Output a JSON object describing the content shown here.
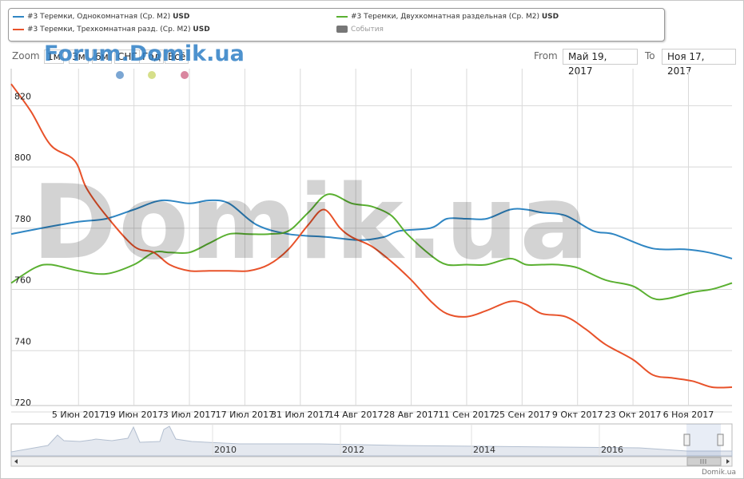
{
  "legend": [
    {
      "label": "#3 Теремки, Однокомнатная (Ср. М2)",
      "unit": "USD",
      "color": "#2f86c3"
    },
    {
      "label": "#3 Теремки, Двухкомнатная раздельная (Ср. М2)",
      "unit": "USD",
      "color": "#5ab031"
    },
    {
      "label": "#3 Теремки, Трехкомнатная разд. (Ср. М2)",
      "unit": "USD",
      "color": "#e8522a"
    },
    {
      "label": "События",
      "unit": "",
      "color": "#777777"
    }
  ],
  "zoom": {
    "label": "Zoom",
    "buttons": [
      "1м",
      "3м",
      "6м",
      "СНГ",
      "Год",
      "Всё"
    ]
  },
  "range": {
    "from_label": "From",
    "from_value": "Май 19, 2017",
    "to_label": "To",
    "to_value": "Ноя 17, 2017"
  },
  "watermarks": {
    "top": "Forum.Domik.ua",
    "big": "Domik.ua"
  },
  "credit": "Domik.ua",
  "event_dot_colors": [
    "#7ba6d3",
    "#d6df8a",
    "#d9869f"
  ],
  "chart_data": {
    "type": "line",
    "ylim": [
      720,
      830
    ],
    "yticks": [
      720,
      740,
      760,
      780,
      800,
      820
    ],
    "xlim": [
      0,
      182
    ],
    "xticks": [
      {
        "label": "5 Июн 2017",
        "x": 17
      },
      {
        "label": "19 Июн 2017",
        "x": 31
      },
      {
        "label": "3 Июл 2017",
        "x": 45
      },
      {
        "label": "17 Июл 2017",
        "x": 59
      },
      {
        "label": "31 Июл 2017",
        "x": 73
      },
      {
        "label": "14 Авг 2017",
        "x": 87
      },
      {
        "label": "28 Авг 2017",
        "x": 101
      },
      {
        "label": "11 Сен 2017",
        "x": 115
      },
      {
        "label": "25 Сен 2017",
        "x": 129
      },
      {
        "label": "9 Окт 2017",
        "x": 143
      },
      {
        "label": "23 Окт 2017",
        "x": 157
      },
      {
        "label": "6 Ноя 2017",
        "x": 171
      }
    ],
    "series": [
      {
        "name": "#3 Теремки, Однокомнатная (Ср. М2)",
        "color": "#2f86c3",
        "x": [
          0,
          8,
          17,
          24,
          31,
          38,
          45,
          50,
          55,
          62,
          70,
          80,
          88,
          94,
          98,
          106,
          110,
          115,
          120,
          126,
          130,
          134,
          140,
          147,
          152,
          160,
          164,
          170,
          176,
          182
        ],
        "y": [
          776,
          778,
          780,
          781,
          784,
          787,
          786,
          787,
          786,
          779,
          776,
          775,
          774,
          775,
          777,
          778,
          781,
          781,
          781,
          784,
          784,
          783,
          782,
          777,
          776,
          772,
          771,
          771,
          770,
          768
        ]
      },
      {
        "name": "#3 Теремки, Двухкомнатная раздельная (Ср. М2)",
        "color": "#5ab031",
        "x": [
          0,
          6,
          10,
          17,
          24,
          31,
          36,
          40,
          45,
          50,
          55,
          60,
          65,
          70,
          75,
          80,
          86,
          91,
          96,
          100,
          106,
          110,
          115,
          120,
          126,
          130,
          134,
          138,
          143,
          150,
          157,
          162,
          166,
          172,
          177,
          182
        ],
        "y": [
          760,
          765,
          766,
          764,
          763,
          766,
          770,
          770,
          770,
          773,
          776,
          776,
          776,
          777,
          783,
          789,
          786,
          785,
          782,
          776,
          769,
          766,
          766,
          766,
          768,
          766,
          766,
          766,
          765,
          761,
          759,
          755,
          755,
          757,
          758,
          760
        ]
      },
      {
        "name": "#3 Теремки, Трехкомнатная разд. (Ср. М2)",
        "color": "#e8522a",
        "x": [
          0,
          5,
          10,
          16,
          19,
          24,
          31,
          36,
          40,
          45,
          50,
          55,
          60,
          65,
          70,
          75,
          79,
          83,
          86,
          91,
          96,
          101,
          106,
          110,
          115,
          120,
          126,
          130,
          134,
          140,
          145,
          150,
          157,
          162,
          167,
          172,
          177,
          182
        ],
        "y": [
          825,
          816,
          805,
          800,
          791,
          782,
          772,
          770,
          766,
          764,
          764,
          764,
          764,
          766,
          771,
          779,
          784,
          778,
          775,
          772,
          767,
          761,
          754,
          750,
          749,
          751,
          754,
          753,
          750,
          749,
          745,
          740,
          735,
          730,
          729,
          728,
          726,
          726
        ]
      }
    ],
    "navigator": {
      "labels": [
        "2010",
        "2012",
        "2014",
        "2016"
      ]
    }
  }
}
